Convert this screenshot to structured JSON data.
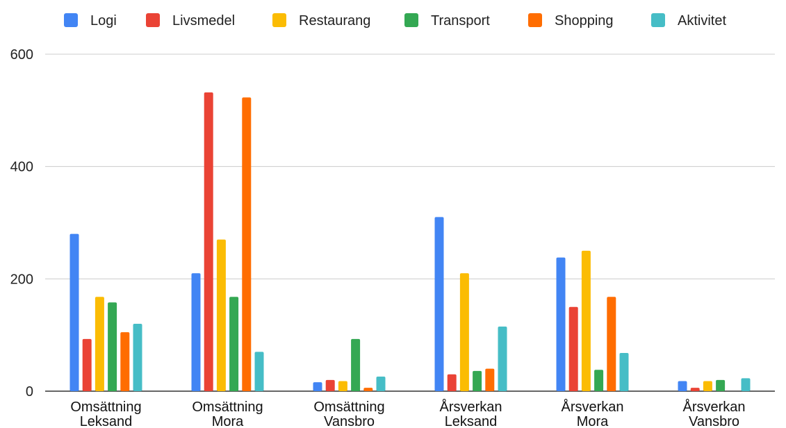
{
  "chart_data": {
    "type": "bar",
    "title": "",
    "xlabel": "",
    "ylabel": "",
    "ylim": [
      0,
      600
    ],
    "yticks": [
      "0",
      "200",
      "400",
      "600"
    ],
    "grid": true,
    "legend_position": "top",
    "categories": [
      [
        "Omsättning",
        "Leksand"
      ],
      [
        "Omsättning",
        "Mora"
      ],
      [
        "Omsättning",
        "Vansbro"
      ],
      [
        "Årsverkan",
        "Leksand"
      ],
      [
        "Årsverkan",
        "Mora"
      ],
      [
        "Årsverkan",
        "Vansbro"
      ]
    ],
    "series": [
      {
        "name": "Logi",
        "color": "#4285F4",
        "values": [
          280,
          210,
          16,
          310,
          238,
          18
        ]
      },
      {
        "name": "Livsmedel",
        "color": "#EA4335",
        "values": [
          93,
          532,
          20,
          30,
          150,
          6
        ]
      },
      {
        "name": "Restaurang",
        "color": "#FBBC04",
        "values": [
          168,
          270,
          18,
          210,
          250,
          18
        ]
      },
      {
        "name": "Transport",
        "color": "#34A853",
        "values": [
          158,
          168,
          93,
          36,
          38,
          20
        ]
      },
      {
        "name": "Shopping",
        "color": "#FF6D01",
        "values": [
          105,
          523,
          6,
          40,
          168,
          0
        ]
      },
      {
        "name": "Aktivitet",
        "color": "#46BDC6",
        "values": [
          120,
          70,
          26,
          115,
          68,
          23
        ]
      }
    ]
  }
}
